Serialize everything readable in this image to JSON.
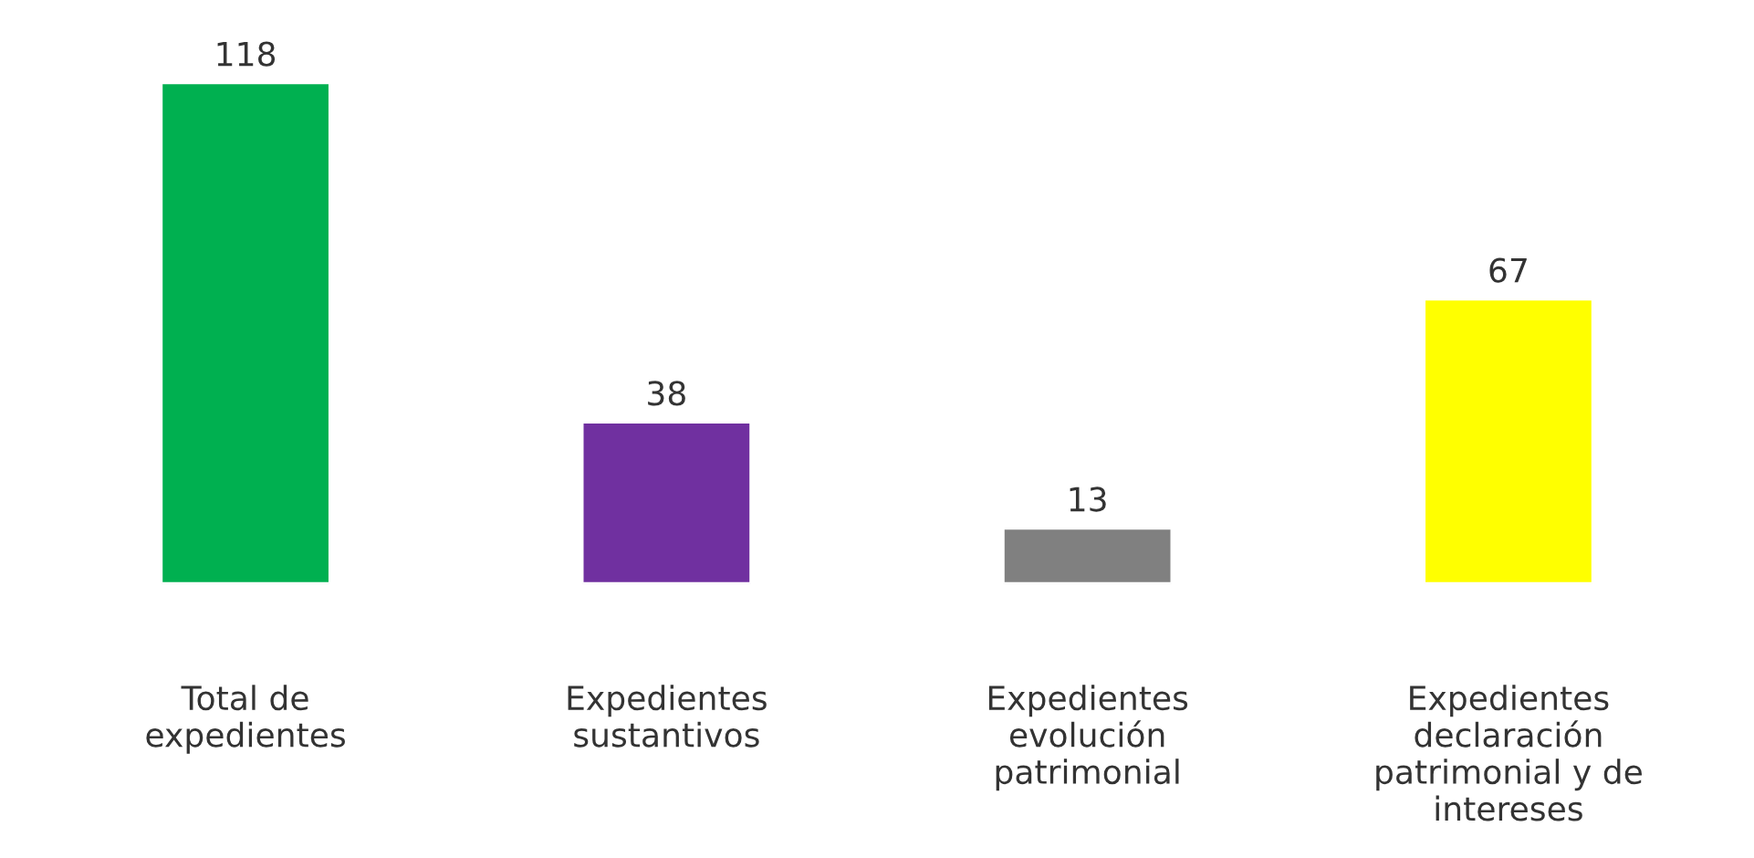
{
  "chart_data": {
    "type": "bar",
    "categories": [
      "Total de expedientes",
      "Expedientes sustantivos",
      "Expedientes evolución patrimonial",
      "Expedientes declaración patrimonial y de intereses"
    ],
    "values": [
      118,
      38,
      13,
      67
    ],
    "colors": [
      "#00b050",
      "#7030a0",
      "#808080",
      "#ffff00"
    ],
    "data_labels": true,
    "tick_labels": "x"
  }
}
